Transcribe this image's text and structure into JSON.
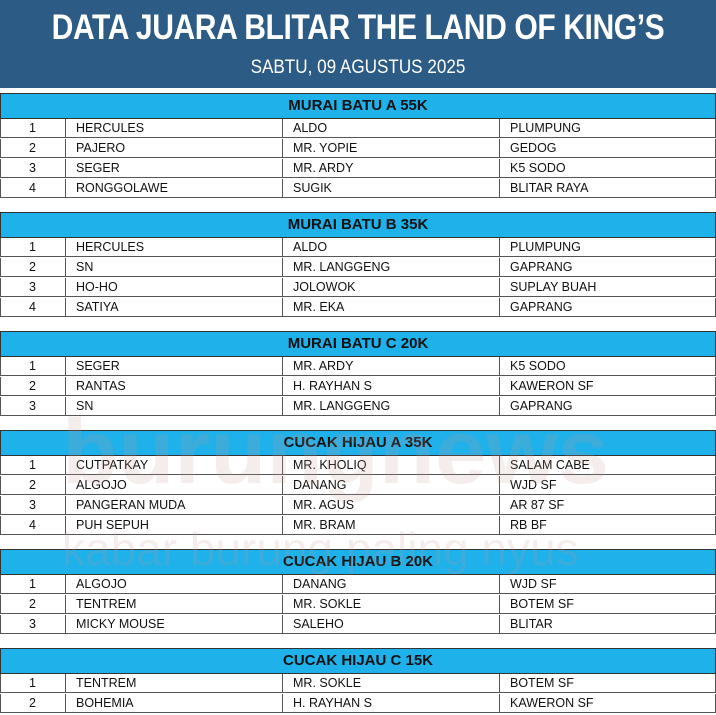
{
  "header": {
    "title": "DATA JUARA BLITAR THE LAND OF KING’S",
    "subtitle": "SABTU, 09 AGUSTUS 2025"
  },
  "watermark": {
    "logo": "burungnews",
    "tagline": "kabar burung paling nyus"
  },
  "sections": [
    {
      "title": "MURAI BATU A 55K",
      "rows": [
        [
          "1",
          "HERCULES",
          "ALDO",
          "PLUMPUNG"
        ],
        [
          "2",
          "PAJERO",
          "MR. YOPIE",
          "GEDOG"
        ],
        [
          "3",
          "SEGER",
          "MR. ARDY",
          "K5 SODO"
        ],
        [
          "4",
          "RONGGOLAWE",
          "SUGIK",
          "BLITAR RAYA"
        ]
      ]
    },
    {
      "title": "MURAI BATU B 35K",
      "rows": [
        [
          "1",
          "HERCULES",
          "ALDO",
          "PLUMPUNG"
        ],
        [
          "2",
          "SN",
          "MR. LANGGENG",
          "GAPRANG"
        ],
        [
          "3",
          "HO-HO",
          "JOLOWOK",
          "SUPLAY BUAH"
        ],
        [
          "4",
          "SATIYA",
          "MR. EKA",
          "GAPRANG"
        ]
      ]
    },
    {
      "title": "MURAI BATU C 20K",
      "rows": [
        [
          "1",
          "SEGER",
          "MR. ARDY",
          "K5 SODO"
        ],
        [
          "2",
          "RANTAS",
          "H. RAYHAN S",
          "KAWERON SF"
        ],
        [
          "3",
          "SN",
          "MR. LANGGENG",
          "GAPRANG"
        ]
      ]
    },
    {
      "title": "CUCAK HIJAU A 35K",
      "rows": [
        [
          "1",
          "CUTPATKAY",
          "MR. KHOLIQ",
          "SALAM CABE"
        ],
        [
          "2",
          "ALGOJO",
          "DANANG",
          "WJD SF"
        ],
        [
          "3",
          "PANGERAN MUDA",
          "MR. AGUS",
          "AR 87 SF"
        ],
        [
          "4",
          "PUH SEPUH",
          "MR. BRAM",
          "RB BF"
        ]
      ]
    },
    {
      "title": "CUCAK HIJAU B 20K",
      "rows": [
        [
          "1",
          "ALGOJO",
          "DANANG",
          "WJD SF"
        ],
        [
          "2",
          "TENTREM",
          "MR. SOKLE",
          "BOTEM SF"
        ],
        [
          "3",
          "MICKY MOUSE",
          "SALEHO",
          "BLITAR"
        ]
      ]
    },
    {
      "title": "CUCAK HIJAU C 15K",
      "rows": [
        [
          "1",
          "TENTREM",
          "MR. SOKLE",
          "BOTEM SF"
        ],
        [
          "2",
          "BOHEMIA",
          "H. RAYHAN S",
          "KAWERON SF"
        ]
      ]
    }
  ]
}
